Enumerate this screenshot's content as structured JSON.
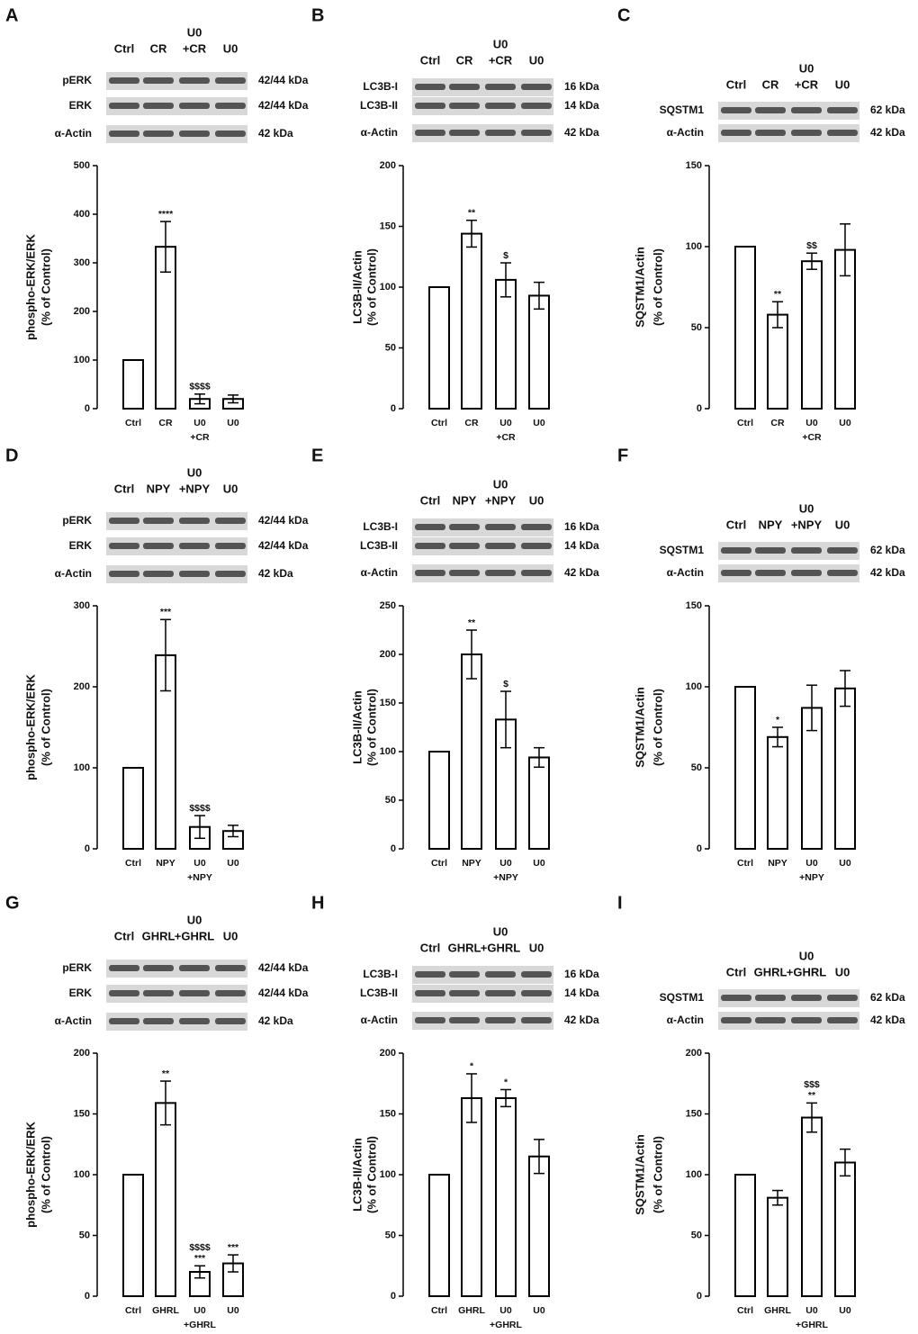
{
  "chart_data": [
    {
      "panel": "A",
      "type": "bar",
      "blot": {
        "lanes": [
          [
            "Ctrl"
          ],
          [
            "CR"
          ],
          [
            "U0",
            "+CR"
          ],
          [
            "U0"
          ]
        ],
        "rows": [
          {
            "label": "pERK",
            "kda": "42/44 kDa"
          },
          {
            "label": "ERK",
            "kda": "42/44 kDa"
          },
          {
            "label": "α-Actin",
            "kda": "42 kDa"
          }
        ]
      },
      "ylabel": [
        "phospho-ERK/ERK",
        "(% of Control)"
      ],
      "categories": [
        [
          "Ctrl"
        ],
        [
          "CR"
        ],
        [
          "U0",
          "+CR"
        ],
        [
          "U0"
        ]
      ],
      "values": [
        100,
        333,
        20,
        20
      ],
      "errors": [
        0,
        52,
        10,
        8
      ],
      "annotations": [
        [],
        [
          "****"
        ],
        [
          "$$$$"
        ],
        []
      ],
      "ylim": [
        0,
        500
      ],
      "yticks": [
        0,
        100,
        200,
        300,
        400,
        500
      ]
    },
    {
      "panel": "B",
      "type": "bar",
      "blot": {
        "lanes": [
          [
            "Ctrl"
          ],
          [
            "CR"
          ],
          [
            "U0",
            "+CR"
          ],
          [
            "U0"
          ]
        ],
        "rows": [
          {
            "label": "LC3B-I",
            "kda": "16 kDa"
          },
          {
            "label": "LC3B-II",
            "kda": "14 kDa"
          },
          {
            "label": "α-Actin",
            "kda": "42 kDa"
          }
        ]
      },
      "ylabel": [
        "LC3B-II/Actin",
        "(% of Control)"
      ],
      "categories": [
        [
          "Ctrl"
        ],
        [
          "CR"
        ],
        [
          "U0",
          "+CR"
        ],
        [
          "U0"
        ]
      ],
      "values": [
        100,
        144,
        106,
        93
      ],
      "errors": [
        0,
        11,
        14,
        11
      ],
      "annotations": [
        [],
        [
          "**"
        ],
        [
          "$"
        ],
        []
      ],
      "ylim": [
        0,
        200
      ],
      "yticks": [
        0,
        50,
        100,
        150,
        200
      ]
    },
    {
      "panel": "C",
      "type": "bar",
      "blot": {
        "lanes": [
          [
            "Ctrl"
          ],
          [
            "CR"
          ],
          [
            "U0",
            "+CR"
          ],
          [
            "U0"
          ]
        ],
        "rows": [
          {
            "label": "SQSTM1",
            "kda": "62 kDa"
          },
          {
            "label": "α-Actin",
            "kda": "42 kDa"
          }
        ]
      },
      "ylabel": [
        "SQSTM1/Actin",
        "(% of Control)"
      ],
      "categories": [
        [
          "Ctrl"
        ],
        [
          "CR"
        ],
        [
          "U0",
          "+CR"
        ],
        [
          "U0"
        ]
      ],
      "values": [
        100,
        58,
        91,
        98
      ],
      "errors": [
        0,
        8,
        5,
        16
      ],
      "annotations": [
        [],
        [
          "**"
        ],
        [
          "$$"
        ],
        []
      ],
      "ylim": [
        0,
        150
      ],
      "yticks": [
        0,
        50,
        100,
        150
      ]
    },
    {
      "panel": "D",
      "type": "bar",
      "blot": {
        "lanes": [
          [
            "Ctrl"
          ],
          [
            "NPY"
          ],
          [
            "U0",
            "+NPY"
          ],
          [
            "U0"
          ]
        ],
        "rows": [
          {
            "label": "pERK",
            "kda": "42/44 kDa"
          },
          {
            "label": "ERK",
            "kda": "42/44 kDa"
          },
          {
            "label": "α-Actin",
            "kda": "42 kDa"
          }
        ]
      },
      "ylabel": [
        "phospho-ERK/ERK",
        "(% of Control)"
      ],
      "categories": [
        [
          "Ctrl"
        ],
        [
          "NPY"
        ],
        [
          "U0",
          "+NPY"
        ],
        [
          "U0"
        ]
      ],
      "values": [
        100,
        239,
        27,
        22
      ],
      "errors": [
        0,
        44,
        14,
        7
      ],
      "annotations": [
        [],
        [
          "***"
        ],
        [
          "$$$$"
        ],
        []
      ],
      "ylim": [
        0,
        300
      ],
      "yticks": [
        0,
        100,
        200,
        300
      ]
    },
    {
      "panel": "E",
      "type": "bar",
      "blot": {
        "lanes": [
          [
            "Ctrl"
          ],
          [
            "NPY"
          ],
          [
            "U0",
            "+NPY"
          ],
          [
            "U0"
          ]
        ],
        "rows": [
          {
            "label": "LC3B-I",
            "kda": "16 kDa"
          },
          {
            "label": "LC3B-II",
            "kda": "14 kDa"
          },
          {
            "label": "α-Actin",
            "kda": "42 kDa"
          }
        ]
      },
      "ylabel": [
        "LC3B-II/Actin",
        "(% of Control)"
      ],
      "categories": [
        [
          "Ctrl"
        ],
        [
          "NPY"
        ],
        [
          "U0",
          "+NPY"
        ],
        [
          "U0"
        ]
      ],
      "values": [
        100,
        200,
        133,
        94
      ],
      "errors": [
        0,
        25,
        29,
        10
      ],
      "annotations": [
        [],
        [
          "**"
        ],
        [
          "$"
        ],
        []
      ],
      "ylim": [
        0,
        250
      ],
      "yticks": [
        0,
        50,
        100,
        150,
        200,
        250
      ]
    },
    {
      "panel": "F",
      "type": "bar",
      "blot": {
        "lanes": [
          [
            "Ctrl"
          ],
          [
            "NPY"
          ],
          [
            "U0",
            "+NPY"
          ],
          [
            "U0"
          ]
        ],
        "rows": [
          {
            "label": "SQSTM1",
            "kda": "62 kDa"
          },
          {
            "label": "α-Actin",
            "kda": "42 kDa"
          }
        ]
      },
      "ylabel": [
        "SQSTM1/Actin",
        "(% of Control)"
      ],
      "categories": [
        [
          "Ctrl"
        ],
        [
          "NPY"
        ],
        [
          "U0",
          "+NPY"
        ],
        [
          "U0"
        ]
      ],
      "values": [
        100,
        69,
        87,
        99
      ],
      "errors": [
        0,
        6,
        14,
        11
      ],
      "annotations": [
        [],
        [
          "*"
        ],
        [],
        []
      ],
      "ylim": [
        0,
        150
      ],
      "yticks": [
        0,
        50,
        100,
        150
      ]
    },
    {
      "panel": "G",
      "type": "bar",
      "blot": {
        "lanes": [
          [
            "Ctrl"
          ],
          [
            "GHRL"
          ],
          [
            "U0",
            "+GHRL"
          ],
          [
            "U0"
          ]
        ],
        "rows": [
          {
            "label": "pERK",
            "kda": "42/44 kDa"
          },
          {
            "label": "ERK",
            "kda": "42/44 kDa"
          },
          {
            "label": "α-Actin",
            "kda": "42 kDa"
          }
        ]
      },
      "ylabel": [
        "phospho-ERK/ERK",
        "(% of Control)"
      ],
      "categories": [
        [
          "Ctrl"
        ],
        [
          "GHRL"
        ],
        [
          "U0",
          "+GHRL"
        ],
        [
          "U0"
        ]
      ],
      "values": [
        100,
        159,
        20,
        27
      ],
      "errors": [
        0,
        18,
        5,
        7
      ],
      "annotations": [
        [],
        [
          "**"
        ],
        [
          "$$$$",
          "***"
        ],
        [
          "***"
        ]
      ],
      "ylim": [
        0,
        200
      ],
      "yticks": [
        0,
        50,
        100,
        150,
        200
      ]
    },
    {
      "panel": "H",
      "type": "bar",
      "blot": {
        "lanes": [
          [
            "Ctrl"
          ],
          [
            "GHRL"
          ],
          [
            "U0",
            "+GHRL"
          ],
          [
            "U0"
          ]
        ],
        "rows": [
          {
            "label": "LC3B-I",
            "kda": "16 kDa"
          },
          {
            "label": "LC3B-II",
            "kda": "14 kDa"
          },
          {
            "label": "α-Actin",
            "kda": "42 kDa"
          }
        ]
      },
      "ylabel": [
        "LC3B-II/Actin",
        "(% of Control)"
      ],
      "categories": [
        [
          "Ctrl"
        ],
        [
          "GHRL"
        ],
        [
          "U0",
          "+GHRL"
        ],
        [
          "U0"
        ]
      ],
      "values": [
        100,
        163,
        163,
        115
      ],
      "errors": [
        0,
        20,
        7,
        14
      ],
      "annotations": [
        [],
        [
          "*"
        ],
        [
          "*"
        ],
        []
      ],
      "ylim": [
        0,
        200
      ],
      "yticks": [
        0,
        50,
        100,
        150,
        200
      ]
    },
    {
      "panel": "I",
      "type": "bar",
      "blot": {
        "lanes": [
          [
            "Ctrl"
          ],
          [
            "GHRL"
          ],
          [
            "U0",
            "+GHRL"
          ],
          [
            "U0"
          ]
        ],
        "rows": [
          {
            "label": "SQSTM1",
            "kda": "62 kDa"
          },
          {
            "label": "α-Actin",
            "kda": "42 kDa"
          }
        ]
      },
      "ylabel": [
        "SQSTM1/Actin",
        "(% of Control)"
      ],
      "categories": [
        [
          "Ctrl"
        ],
        [
          "GHRL"
        ],
        [
          "U0",
          "+GHRL"
        ],
        [
          "U0"
        ]
      ],
      "values": [
        100,
        81,
        147,
        110
      ],
      "errors": [
        0,
        6,
        12,
        11
      ],
      "annotations": [
        [],
        [],
        [
          "$$$",
          "**"
        ],
        []
      ],
      "ylim": [
        0,
        200
      ],
      "yticks": [
        0,
        50,
        100,
        150,
        200
      ]
    }
  ]
}
